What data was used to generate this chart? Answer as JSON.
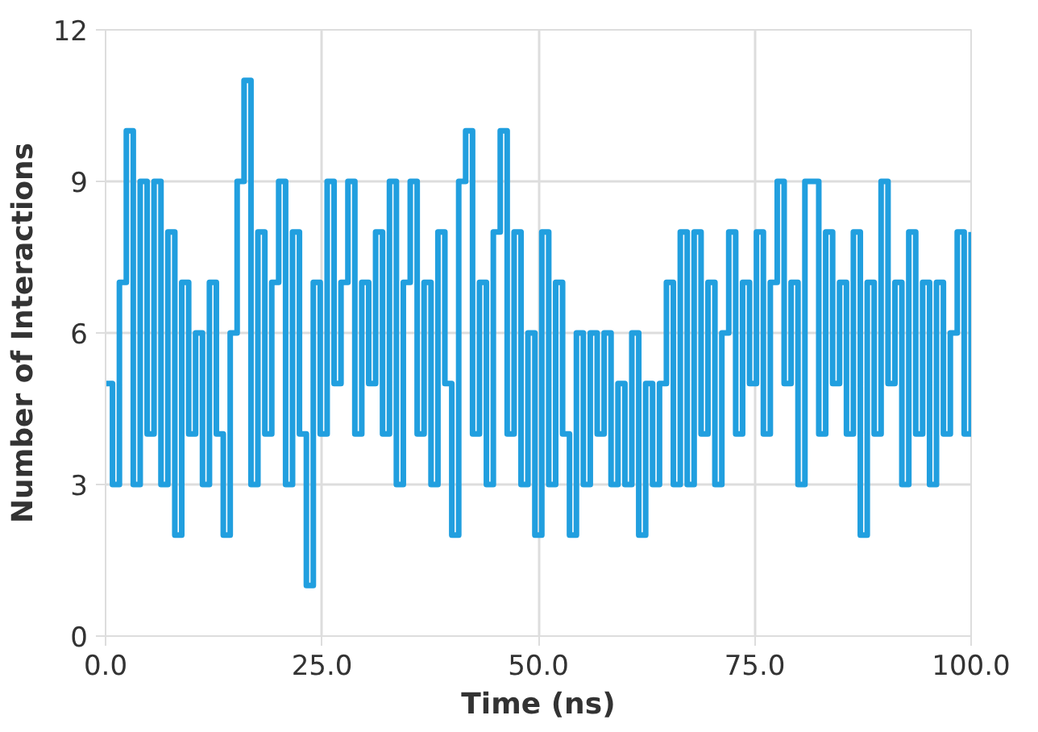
{
  "chart_data": {
    "type": "step",
    "xlabel": "Time (ns)",
    "ylabel": "Number of Interactions",
    "xlim": [
      0,
      100
    ],
    "ylim": [
      0,
      12
    ],
    "xticks": [
      {
        "value": 0,
        "label": "0.0"
      },
      {
        "value": 25,
        "label": "25.0"
      },
      {
        "value": 50,
        "label": "50.0"
      },
      {
        "value": 75,
        "label": "75.0"
      },
      {
        "value": 100,
        "label": "100.0"
      }
    ],
    "yticks": [
      0,
      3,
      6,
      9,
      12
    ],
    "grid": true,
    "line_style": "solid",
    "x": [
      0,
      0.8,
      1.6,
      2.4,
      3.2,
      4,
      4.8,
      5.6,
      6.4,
      7.2,
      8,
      8.8,
      9.6,
      10.4,
      11.2,
      12,
      12.8,
      13.6,
      14.4,
      15.2,
      16,
      16.8,
      17.6,
      18.4,
      19.2,
      20,
      20.8,
      21.6,
      22.4,
      23.2,
      24,
      24.8,
      25.6,
      26.4,
      27.2,
      28,
      28.8,
      29.6,
      30.4,
      31.2,
      32,
      32.8,
      33.6,
      34.4,
      35.2,
      36,
      36.8,
      37.6,
      38.4,
      39.2,
      40,
      40.8,
      41.6,
      42.4,
      43.2,
      44,
      44.8,
      45.6,
      46.4,
      47.2,
      48,
      48.8,
      49.6,
      50.4,
      51.2,
      52,
      52.8,
      53.6,
      54.4,
      55.2,
      56,
      56.8,
      57.6,
      58.4,
      59.2,
      60,
      60.8,
      61.6,
      62.4,
      63.2,
      64,
      64.8,
      65.6,
      66.4,
      67.2,
      68,
      68.8,
      69.6,
      70.4,
      71.2,
      72,
      72.8,
      73.6,
      74.4,
      75.2,
      76,
      76.8,
      77.6,
      78.4,
      79.2,
      80,
      80.8,
      81.6,
      82.4,
      83.2,
      84,
      84.8,
      85.6,
      86.4,
      87.2,
      88,
      88.8,
      89.6,
      90.4,
      91.2,
      92,
      92.8,
      93.6,
      94.4,
      95.2,
      96,
      96.8,
      97.6,
      98.4,
      99.2,
      100
    ],
    "series": [
      {
        "color": "#219fdf",
        "values": [
          5,
          3,
          7,
          10,
          3,
          9,
          4,
          9,
          3,
          8,
          2,
          7,
          4,
          6,
          3,
          7,
          4,
          2,
          6,
          9,
          11,
          3,
          8,
          4,
          7,
          9,
          3,
          8,
          4,
          1,
          7,
          4,
          9,
          5,
          7,
          9,
          4,
          7,
          5,
          8,
          4,
          9,
          3,
          7,
          9,
          4,
          7,
          3,
          8,
          5,
          2,
          9,
          10,
          4,
          7,
          3,
          8,
          10,
          4,
          8,
          3,
          6,
          2,
          8,
          3,
          7,
          4,
          2,
          6,
          3,
          6,
          4,
          6,
          3,
          5,
          3,
          6,
          2,
          5,
          3,
          5,
          7,
          3,
          8,
          3,
          8,
          4,
          7,
          3,
          6,
          8,
          4,
          7,
          5,
          8,
          4,
          7,
          9,
          5,
          7,
          3,
          9,
          9,
          4,
          8,
          5,
          7,
          4,
          8,
          2,
          7,
          4,
          9,
          5,
          7,
          3,
          8,
          4,
          7,
          3,
          7,
          4,
          6,
          8,
          4,
          8
        ]
      }
    ]
  }
}
